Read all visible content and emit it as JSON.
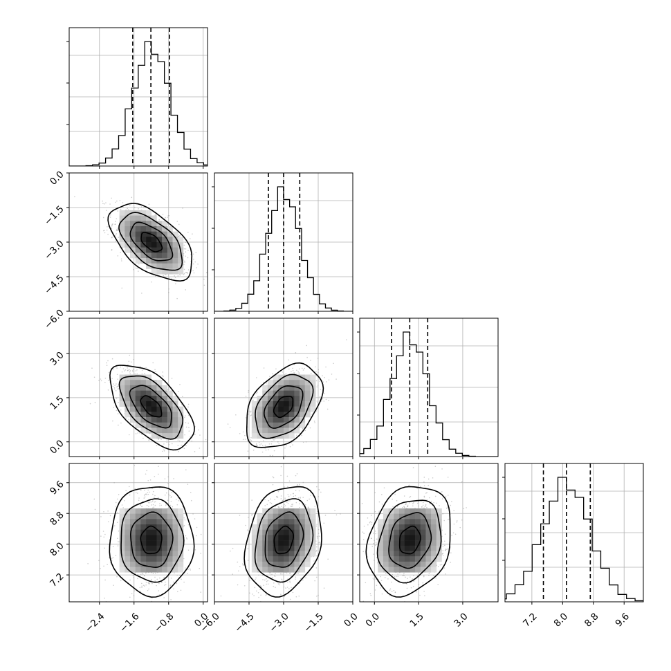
{
  "chart_data": {
    "type": "corner",
    "title": "",
    "grid": true,
    "parameters": [
      {
        "xlim": [
          -3.1,
          0.1
        ],
        "ticks": [
          -2.4,
          -1.6,
          -0.8,
          0.0
        ],
        "tick_labels": [
          "−2.4",
          "−1.6",
          "−0.8",
          "0.0"
        ],
        "mean": -1.2,
        "sd": 0.42,
        "quantiles": [
          -1.63,
          -1.21,
          -0.78
        ]
      },
      {
        "xlim": [
          -6.0,
          0.0
        ],
        "ticks": [
          -6.0,
          -4.5,
          -3.0,
          -1.5,
          0.0
        ],
        "tick_labels": [
          "−6.0",
          "−4.5",
          "−3.0",
          "−1.5",
          "0.0"
        ],
        "mean": -3.0,
        "sd": 0.72,
        "quantiles": [
          -3.66,
          -3.0,
          -2.3
        ]
      },
      {
        "xlim": [
          -0.5,
          4.2
        ],
        "ticks": [
          0.0,
          1.5,
          3.0
        ],
        "tick_labels": [
          "0.0",
          "1.5",
          "3.0"
        ],
        "mean": 1.2,
        "sd": 0.62,
        "quantiles": [
          0.58,
          1.2,
          1.81
        ]
      },
      {
        "xlim": [
          6.5,
          10.1
        ],
        "ticks": [
          7.2,
          8.0,
          8.8,
          9.6
        ],
        "tick_labels": [
          "7.2",
          "8.0",
          "8.8",
          "9.6"
        ],
        "mean": 8.1,
        "sd": 0.62,
        "quantiles": [
          7.5,
          8.1,
          8.72
        ]
      }
    ],
    "y_axes": {
      "1": {
        "ticks": [
          -6.0,
          -4.5,
          -3.0,
          -1.5,
          0.0
        ],
        "tick_labels": [
          "−6.0",
          "−4.5",
          "−3.0",
          "−1.5",
          "0.0"
        ]
      },
      "2": {
        "ticks": [
          0.0,
          1.5,
          3.0
        ],
        "tick_labels": [
          "0.0",
          "1.5",
          "3.0"
        ]
      },
      "3": {
        "ticks": [
          7.2,
          8.0,
          8.8,
          9.6
        ],
        "tick_labels": [
          "7.2",
          "8.0",
          "8.8",
          "9.6"
        ]
      }
    },
    "correlations": {
      "1-0": -0.55,
      "2-0": -0.58,
      "2-1": 0.42,
      "3-0": 0.0,
      "3-1": 0.22,
      "3-2": 0.2
    },
    "histogram_bins": 20,
    "contour_levels_sigma": [
      0.5,
      1.0,
      1.5,
      2.0
    ],
    "colors": {
      "line": "#000000",
      "points": "#9a9a9a",
      "grid": "#b0b0b0",
      "background": "#ffffff"
    }
  }
}
